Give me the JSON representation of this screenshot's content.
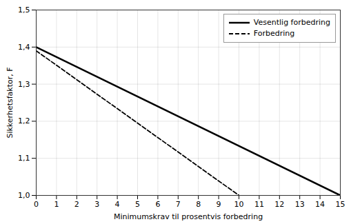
{
  "chart_data": {
    "type": "line",
    "xlabel": "Minimumskrav til prosentvis forbedring",
    "ylabel": "Sikkerhetsfaktor, F",
    "series": [
      {
        "name": "Vesentlig forbedring",
        "color": "#000000",
        "line_style": "solid",
        "x": [
          0,
          15
        ],
        "values": [
          1.4,
          1.0
        ]
      },
      {
        "name": "Forbedring",
        "color": "#000000",
        "line_style": "dashed",
        "x": [
          0,
          10
        ],
        "values": [
          1.39,
          1.0
        ]
      }
    ],
    "xlim": [
      0,
      15
    ],
    "ylim": [
      1.0,
      1.5
    ],
    "xticks": [
      0,
      1,
      2,
      3,
      4,
      5,
      6,
      7,
      8,
      9,
      10,
      11,
      12,
      13,
      14,
      15
    ],
    "yticks": [
      {
        "value": 1.0,
        "label": "1,0"
      },
      {
        "value": 1.1,
        "label": "1,1"
      },
      {
        "value": 1.2,
        "label": "1,2"
      },
      {
        "value": 1.3,
        "label": "1,3"
      },
      {
        "value": 1.4,
        "label": "1,4"
      },
      {
        "value": 1.5,
        "label": "1,5"
      }
    ],
    "grid": true,
    "legend": "upper right"
  }
}
